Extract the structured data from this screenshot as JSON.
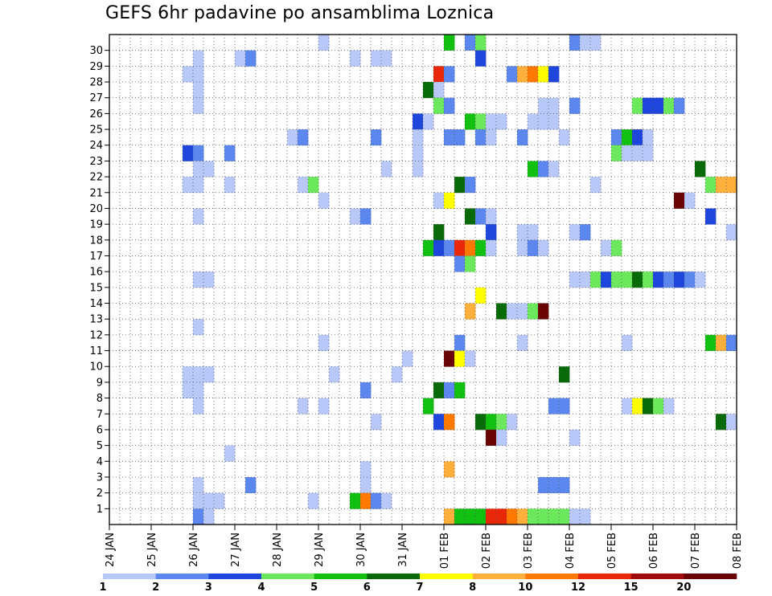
{
  "chart_data": {
    "type": "heatmap",
    "title": "GEFS 6hr padavine po ansamblima Loznica",
    "xlabel": "",
    "ylabel": "",
    "x_tick_labels": [
      "24 JAN",
      "25 JAN",
      "26 JAN",
      "27 JAN",
      "28 JAN",
      "29 JAN",
      "30 JAN",
      "31 JAN",
      "01 FEB",
      "02 FEB",
      "03 FEB",
      "04 FEB",
      "05 FEB",
      "06 FEB",
      "07 FEB",
      "08 FEB"
    ],
    "y_tick_labels": [
      "1",
      "2",
      "3",
      "4",
      "5",
      "6",
      "7",
      "8",
      "9",
      "10",
      "11",
      "12",
      "13",
      "14",
      "15",
      "16",
      "17",
      "18",
      "19",
      "20",
      "21",
      "22",
      "23",
      "24",
      "25",
      "26",
      "27",
      "28",
      "29",
      "30"
    ],
    "ylim": [
      0,
      30
    ],
    "grid": true,
    "colorbar": {
      "thresholds": [
        "1",
        "2",
        "3",
        "4",
        "5",
        "6",
        "7",
        "8",
        "10",
        "12",
        "15",
        "20"
      ],
      "colors": [
        "#b8c8f8",
        "#5c87ee",
        "#1e46dc",
        "#6ce85c",
        "#12c012",
        "#086a08",
        "#ffff00",
        "#ffb03c",
        "#ff7800",
        "#e82808",
        "#a00c0c",
        "#6a0404"
      ]
    },
    "cells": [
      {
        "member": 30,
        "step": 32,
        "bin": 5
      },
      {
        "member": 30,
        "step": 34,
        "bin": 2
      },
      {
        "member": 30,
        "step": 35,
        "bin": 4
      },
      {
        "member": 30,
        "step": 44,
        "bin": 2
      },
      {
        "member": 30,
        "step": 45,
        "bin": 1
      },
      {
        "member": 30,
        "step": 46,
        "bin": 1
      },
      {
        "member": 30,
        "step": 20,
        "bin": 1
      },
      {
        "member": 29,
        "step": 8,
        "bin": 1
      },
      {
        "member": 29,
        "step": 12,
        "bin": 1
      },
      {
        "member": 29,
        "step": 13,
        "bin": 2
      },
      {
        "member": 29,
        "step": 23,
        "bin": 1
      },
      {
        "member": 29,
        "step": 25,
        "bin": 1
      },
      {
        "member": 29,
        "step": 26,
        "bin": 1
      },
      {
        "member": 29,
        "step": 35,
        "bin": 3
      },
      {
        "member": 28,
        "step": 7,
        "bin": 1
      },
      {
        "member": 28,
        "step": 8,
        "bin": 1
      },
      {
        "member": 28,
        "step": 31,
        "bin": 10
      },
      {
        "member": 28,
        "step": 32,
        "bin": 2
      },
      {
        "member": 28,
        "step": 38,
        "bin": 2
      },
      {
        "member": 28,
        "step": 39,
        "bin": 8
      },
      {
        "member": 28,
        "step": 40,
        "bin": 9
      },
      {
        "member": 28,
        "step": 41,
        "bin": 7
      },
      {
        "member": 28,
        "step": 42,
        "bin": 3
      },
      {
        "member": 27,
        "step": 8,
        "bin": 1
      },
      {
        "member": 27,
        "step": 30,
        "bin": 6
      },
      {
        "member": 27,
        "step": 31,
        "bin": 1
      },
      {
        "member": 26,
        "step": 8,
        "bin": 1
      },
      {
        "member": 26,
        "step": 31,
        "bin": 4
      },
      {
        "member": 26,
        "step": 32,
        "bin": 2
      },
      {
        "member": 26,
        "step": 41,
        "bin": 1
      },
      {
        "member": 26,
        "step": 42,
        "bin": 1
      },
      {
        "member": 26,
        "step": 44,
        "bin": 2
      },
      {
        "member": 26,
        "step": 50,
        "bin": 4
      },
      {
        "member": 26,
        "step": 51,
        "bin": 3
      },
      {
        "member": 26,
        "step": 52,
        "bin": 3
      },
      {
        "member": 26,
        "step": 53,
        "bin": 4
      },
      {
        "member": 26,
        "step": 54,
        "bin": 2
      },
      {
        "member": 25,
        "step": 29,
        "bin": 3
      },
      {
        "member": 25,
        "step": 30,
        "bin": 1
      },
      {
        "member": 25,
        "step": 34,
        "bin": 5
      },
      {
        "member": 25,
        "step": 35,
        "bin": 4
      },
      {
        "member": 25,
        "step": 36,
        "bin": 1
      },
      {
        "member": 25,
        "step": 37,
        "bin": 1
      },
      {
        "member": 25,
        "step": 40,
        "bin": 1
      },
      {
        "member": 25,
        "step": 41,
        "bin": 1
      },
      {
        "member": 25,
        "step": 42,
        "bin": 1
      },
      {
        "member": 24,
        "step": 17,
        "bin": 1
      },
      {
        "member": 24,
        "step": 18,
        "bin": 2
      },
      {
        "member": 24,
        "step": 25,
        "bin": 2
      },
      {
        "member": 24,
        "step": 29,
        "bin": 1
      },
      {
        "member": 24,
        "step": 32,
        "bin": 2
      },
      {
        "member": 24,
        "step": 33,
        "bin": 2
      },
      {
        "member": 24,
        "step": 35,
        "bin": 2
      },
      {
        "member": 24,
        "step": 36,
        "bin": 1
      },
      {
        "member": 24,
        "step": 39,
        "bin": 2
      },
      {
        "member": 24,
        "step": 43,
        "bin": 1
      },
      {
        "member": 24,
        "step": 48,
        "bin": 2
      },
      {
        "member": 24,
        "step": 49,
        "bin": 5
      },
      {
        "member": 24,
        "step": 50,
        "bin": 3
      },
      {
        "member": 24,
        "step": 51,
        "bin": 1
      },
      {
        "member": 23,
        "step": 7,
        "bin": 3
      },
      {
        "member": 23,
        "step": 8,
        "bin": 2
      },
      {
        "member": 23,
        "step": 11,
        "bin": 2
      },
      {
        "member": 23,
        "step": 29,
        "bin": 1
      },
      {
        "member": 23,
        "step": 48,
        "bin": 4
      },
      {
        "member": 23,
        "step": 49,
        "bin": 1
      },
      {
        "member": 23,
        "step": 50,
        "bin": 1
      },
      {
        "member": 23,
        "step": 51,
        "bin": 1
      },
      {
        "member": 22,
        "step": 8,
        "bin": 1
      },
      {
        "member": 22,
        "step": 9,
        "bin": 1
      },
      {
        "member": 22,
        "step": 26,
        "bin": 1
      },
      {
        "member": 22,
        "step": 29,
        "bin": 1
      },
      {
        "member": 22,
        "step": 40,
        "bin": 5
      },
      {
        "member": 22,
        "step": 41,
        "bin": 2
      },
      {
        "member": 22,
        "step": 42,
        "bin": 1
      },
      {
        "member": 22,
        "step": 56,
        "bin": 6
      },
      {
        "member": 21,
        "step": 7,
        "bin": 1
      },
      {
        "member": 21,
        "step": 8,
        "bin": 1
      },
      {
        "member": 21,
        "step": 11,
        "bin": 1
      },
      {
        "member": 21,
        "step": 18,
        "bin": 1
      },
      {
        "member": 21,
        "step": 19,
        "bin": 4
      },
      {
        "member": 21,
        "step": 33,
        "bin": 6
      },
      {
        "member": 21,
        "step": 34,
        "bin": 2
      },
      {
        "member": 21,
        "step": 46,
        "bin": 1
      },
      {
        "member": 21,
        "step": 57,
        "bin": 4
      },
      {
        "member": 21,
        "step": 58,
        "bin": 8
      },
      {
        "member": 21,
        "step": 59,
        "bin": 8
      },
      {
        "member": 20,
        "step": 20,
        "bin": 1
      },
      {
        "member": 20,
        "step": 31,
        "bin": 1
      },
      {
        "member": 20,
        "step": 32,
        "bin": 7
      },
      {
        "member": 20,
        "step": 54,
        "bin": 12
      },
      {
        "member": 20,
        "step": 55,
        "bin": 1
      },
      {
        "member": 19,
        "step": 8,
        "bin": 1
      },
      {
        "member": 19,
        "step": 23,
        "bin": 1
      },
      {
        "member": 19,
        "step": 24,
        "bin": 2
      },
      {
        "member": 19,
        "step": 34,
        "bin": 6
      },
      {
        "member": 19,
        "step": 35,
        "bin": 2
      },
      {
        "member": 19,
        "step": 36,
        "bin": 1
      },
      {
        "member": 19,
        "step": 57,
        "bin": 3
      },
      {
        "member": 18,
        "step": 31,
        "bin": 6
      },
      {
        "member": 18,
        "step": 36,
        "bin": 3
      },
      {
        "member": 18,
        "step": 39,
        "bin": 1
      },
      {
        "member": 18,
        "step": 40,
        "bin": 1
      },
      {
        "member": 18,
        "step": 44,
        "bin": 1
      },
      {
        "member": 18,
        "step": 45,
        "bin": 2
      },
      {
        "member": 18,
        "step": 59,
        "bin": 1
      },
      {
        "member": 17,
        "step": 30,
        "bin": 5
      },
      {
        "member": 17,
        "step": 31,
        "bin": 3
      },
      {
        "member": 17,
        "step": 32,
        "bin": 2
      },
      {
        "member": 17,
        "step": 33,
        "bin": 10
      },
      {
        "member": 17,
        "step": 34,
        "bin": 9
      },
      {
        "member": 17,
        "step": 35,
        "bin": 5
      },
      {
        "member": 17,
        "step": 36,
        "bin": 1
      },
      {
        "member": 17,
        "step": 39,
        "bin": 1
      },
      {
        "member": 17,
        "step": 40,
        "bin": 2
      },
      {
        "member": 17,
        "step": 41,
        "bin": 1
      },
      {
        "member": 17,
        "step": 47,
        "bin": 1
      },
      {
        "member": 17,
        "step": 48,
        "bin": 4
      },
      {
        "member": 16,
        "step": 33,
        "bin": 2
      },
      {
        "member": 16,
        "step": 34,
        "bin": 4
      },
      {
        "member": 15,
        "step": 8,
        "bin": 1
      },
      {
        "member": 15,
        "step": 9,
        "bin": 1
      },
      {
        "member": 15,
        "step": 44,
        "bin": 1
      },
      {
        "member": 15,
        "step": 45,
        "bin": 1
      },
      {
        "member": 15,
        "step": 46,
        "bin": 4
      },
      {
        "member": 15,
        "step": 47,
        "bin": 3
      },
      {
        "member": 15,
        "step": 48,
        "bin": 4
      },
      {
        "member": 15,
        "step": 49,
        "bin": 4
      },
      {
        "member": 15,
        "step": 50,
        "bin": 6
      },
      {
        "member": 15,
        "step": 51,
        "bin": 4
      },
      {
        "member": 15,
        "step": 52,
        "bin": 3
      },
      {
        "member": 15,
        "step": 53,
        "bin": 2
      },
      {
        "member": 15,
        "step": 54,
        "bin": 3
      },
      {
        "member": 15,
        "step": 55,
        "bin": 2
      },
      {
        "member": 15,
        "step": 56,
        "bin": 1
      },
      {
        "member": 14,
        "step": 35,
        "bin": 7
      },
      {
        "member": 13,
        "step": 34,
        "bin": 8
      },
      {
        "member": 13,
        "step": 37,
        "bin": 6
      },
      {
        "member": 13,
        "step": 38,
        "bin": 1
      },
      {
        "member": 13,
        "step": 39,
        "bin": 1
      },
      {
        "member": 13,
        "step": 40,
        "bin": 4
      },
      {
        "member": 13,
        "step": 41,
        "bin": 12
      },
      {
        "member": 12,
        "step": 8,
        "bin": 1
      },
      {
        "member": 11,
        "step": 20,
        "bin": 1
      },
      {
        "member": 11,
        "step": 33,
        "bin": 2
      },
      {
        "member": 11,
        "step": 39,
        "bin": 1
      },
      {
        "member": 11,
        "step": 49,
        "bin": 1
      },
      {
        "member": 11,
        "step": 57,
        "bin": 5
      },
      {
        "member": 11,
        "step": 58,
        "bin": 8
      },
      {
        "member": 11,
        "step": 59,
        "bin": 2
      },
      {
        "member": 10,
        "step": 28,
        "bin": 1
      },
      {
        "member": 10,
        "step": 32,
        "bin": 12
      },
      {
        "member": 10,
        "step": 33,
        "bin": 7
      },
      {
        "member": 10,
        "step": 34,
        "bin": 1
      },
      {
        "member": 9,
        "step": 7,
        "bin": 1
      },
      {
        "member": 9,
        "step": 8,
        "bin": 1
      },
      {
        "member": 9,
        "step": 9,
        "bin": 1
      },
      {
        "member": 9,
        "step": 21,
        "bin": 1
      },
      {
        "member": 9,
        "step": 27,
        "bin": 1
      },
      {
        "member": 9,
        "step": 43,
        "bin": 6
      },
      {
        "member": 8,
        "step": 7,
        "bin": 1
      },
      {
        "member": 8,
        "step": 8,
        "bin": 1
      },
      {
        "member": 8,
        "step": 24,
        "bin": 2
      },
      {
        "member": 8,
        "step": 31,
        "bin": 6
      },
      {
        "member": 8,
        "step": 32,
        "bin": 2
      },
      {
        "member": 8,
        "step": 33,
        "bin": 5
      },
      {
        "member": 7,
        "step": 8,
        "bin": 1
      },
      {
        "member": 7,
        "step": 18,
        "bin": 1
      },
      {
        "member": 7,
        "step": 20,
        "bin": 1
      },
      {
        "member": 7,
        "step": 30,
        "bin": 5
      },
      {
        "member": 7,
        "step": 42,
        "bin": 2
      },
      {
        "member": 7,
        "step": 43,
        "bin": 2
      },
      {
        "member": 7,
        "step": 49,
        "bin": 1
      },
      {
        "member": 7,
        "step": 50,
        "bin": 7
      },
      {
        "member": 7,
        "step": 51,
        "bin": 6
      },
      {
        "member": 7,
        "step": 52,
        "bin": 4
      },
      {
        "member": 7,
        "step": 53,
        "bin": 1
      },
      {
        "member": 6,
        "step": 25,
        "bin": 1
      },
      {
        "member": 6,
        "step": 31,
        "bin": 3
      },
      {
        "member": 6,
        "step": 32,
        "bin": 9
      },
      {
        "member": 6,
        "step": 35,
        "bin": 6
      },
      {
        "member": 6,
        "step": 36,
        "bin": 5
      },
      {
        "member": 6,
        "step": 37,
        "bin": 4
      },
      {
        "member": 6,
        "step": 38,
        "bin": 1
      },
      {
        "member": 6,
        "step": 58,
        "bin": 6
      },
      {
        "member": 6,
        "step": 59,
        "bin": 1
      },
      {
        "member": 5,
        "step": 36,
        "bin": 12
      },
      {
        "member": 5,
        "step": 37,
        "bin": 1
      },
      {
        "member": 5,
        "step": 44,
        "bin": 1
      },
      {
        "member": 4,
        "step": 11,
        "bin": 1
      },
      {
        "member": 3,
        "step": 24,
        "bin": 1
      },
      {
        "member": 3,
        "step": 32,
        "bin": 8
      },
      {
        "member": 2,
        "step": 8,
        "bin": 1
      },
      {
        "member": 2,
        "step": 13,
        "bin": 2
      },
      {
        "member": 2,
        "step": 24,
        "bin": 1
      },
      {
        "member": 2,
        "step": 41,
        "bin": 2
      },
      {
        "member": 2,
        "step": 42,
        "bin": 2
      },
      {
        "member": 2,
        "step": 43,
        "bin": 2
      },
      {
        "member": 1,
        "step": 8,
        "bin": 1
      },
      {
        "member": 1,
        "step": 9,
        "bin": 1
      },
      {
        "member": 1,
        "step": 10,
        "bin": 1
      },
      {
        "member": 1,
        "step": 19,
        "bin": 1
      },
      {
        "member": 1,
        "step": 23,
        "bin": 5
      },
      {
        "member": 1,
        "step": 24,
        "bin": 9
      },
      {
        "member": 1,
        "step": 25,
        "bin": 2
      },
      {
        "member": 1,
        "step": 26,
        "bin": 1
      },
      {
        "member": 0,
        "step": 8,
        "bin": 2
      },
      {
        "member": 0,
        "step": 9,
        "bin": 1
      },
      {
        "member": 0,
        "step": 32,
        "bin": 8
      },
      {
        "member": 0,
        "step": 33,
        "bin": 5
      },
      {
        "member": 0,
        "step": 34,
        "bin": 5
      },
      {
        "member": 0,
        "step": 35,
        "bin": 5
      },
      {
        "member": 0,
        "step": 36,
        "bin": 10
      },
      {
        "member": 0,
        "step": 37,
        "bin": 10
      },
      {
        "member": 0,
        "step": 38,
        "bin": 9
      },
      {
        "member": 0,
        "step": 39,
        "bin": 8
      },
      {
        "member": 0,
        "step": 40,
        "bin": 4
      },
      {
        "member": 0,
        "step": 41,
        "bin": 4
      },
      {
        "member": 0,
        "step": 42,
        "bin": 4
      },
      {
        "member": 0,
        "step": 43,
        "bin": 4
      },
      {
        "member": 0,
        "step": 44,
        "bin": 1
      },
      {
        "member": 0,
        "step": 45,
        "bin": 1
      }
    ]
  }
}
